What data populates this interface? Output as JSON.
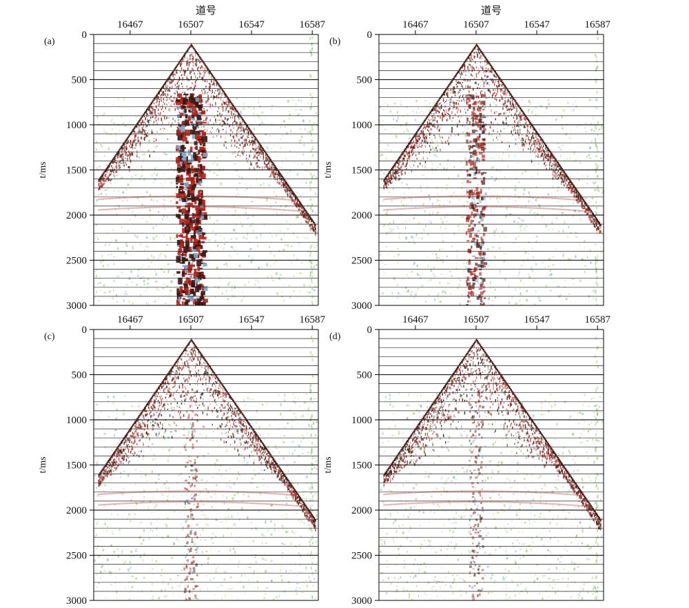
{
  "colors": {
    "background": "#ffffff",
    "axis": "#000000",
    "gridline": "#222222",
    "wave_dark": "#3b1410",
    "wave_red": "#b3261e",
    "noise_green": "#9cc47a",
    "noise_blue": "#7fa6c9"
  },
  "chart_data": [
    {
      "type": "heatmap",
      "panel_label": "(a)",
      "xlabel": "道号",
      "ylabel": "t/ms",
      "x_ticks": [
        16467,
        16507,
        16547,
        16587
      ],
      "y_ticks": [
        0,
        500,
        1000,
        1500,
        2000,
        2500,
        3000
      ],
      "xlim": [
        16443,
        16591
      ],
      "ylim": [
        0,
        3000
      ],
      "grid_interval_ms": 100,
      "source_trace": 16507,
      "first_break_apex_ms": 100,
      "first_break_left_edge_ms": 1600,
      "first_break_right_edge_ms": 2100,
      "strong_noise_band_traces": [
        16497,
        16515
      ],
      "noise_amplitude": "strong"
    },
    {
      "type": "heatmap",
      "panel_label": "(b)",
      "xlabel": "道号",
      "ylabel": "t/ms",
      "x_ticks": [
        16467,
        16507,
        16547,
        16587
      ],
      "y_ticks": [
        0,
        500,
        1000,
        1500,
        2000,
        2500,
        3000
      ],
      "xlim": [
        16443,
        16591
      ],
      "ylim": [
        0,
        3000
      ],
      "grid_interval_ms": 100,
      "source_trace": 16507,
      "first_break_apex_ms": 100,
      "first_break_left_edge_ms": 1600,
      "first_break_right_edge_ms": 2100,
      "strong_noise_band_traces": [
        16500,
        16512
      ],
      "noise_amplitude": "medium"
    },
    {
      "type": "heatmap",
      "panel_label": "(c)",
      "xlabel": "",
      "ylabel": "t/ms",
      "x_ticks": [
        16467,
        16507,
        16547,
        16587
      ],
      "y_ticks": [
        0,
        500,
        1000,
        1500,
        2000,
        2500,
        3000
      ],
      "xlim": [
        16443,
        16591
      ],
      "ylim": [
        0,
        3000
      ],
      "grid_interval_ms": 100,
      "source_trace": 16507,
      "first_break_apex_ms": 100,
      "first_break_left_edge_ms": 1600,
      "first_break_right_edge_ms": 2100,
      "strong_noise_band_traces": [
        16502,
        16511
      ],
      "noise_amplitude": "weak"
    },
    {
      "type": "heatmap",
      "panel_label": "(d)",
      "xlabel": "",
      "ylabel": "t/ms",
      "x_ticks": [
        16467,
        16507,
        16547,
        16587
      ],
      "y_ticks": [
        0,
        500,
        1000,
        1500,
        2000,
        2500,
        3000
      ],
      "xlim": [
        16443,
        16591
      ],
      "ylim": [
        0,
        3000
      ],
      "grid_interval_ms": 100,
      "source_trace": 16507,
      "first_break_apex_ms": 100,
      "first_break_left_edge_ms": 1600,
      "first_break_right_edge_ms": 2100,
      "strong_noise_band_traces": [
        16502,
        16511
      ],
      "noise_amplitude": "weak"
    }
  ]
}
